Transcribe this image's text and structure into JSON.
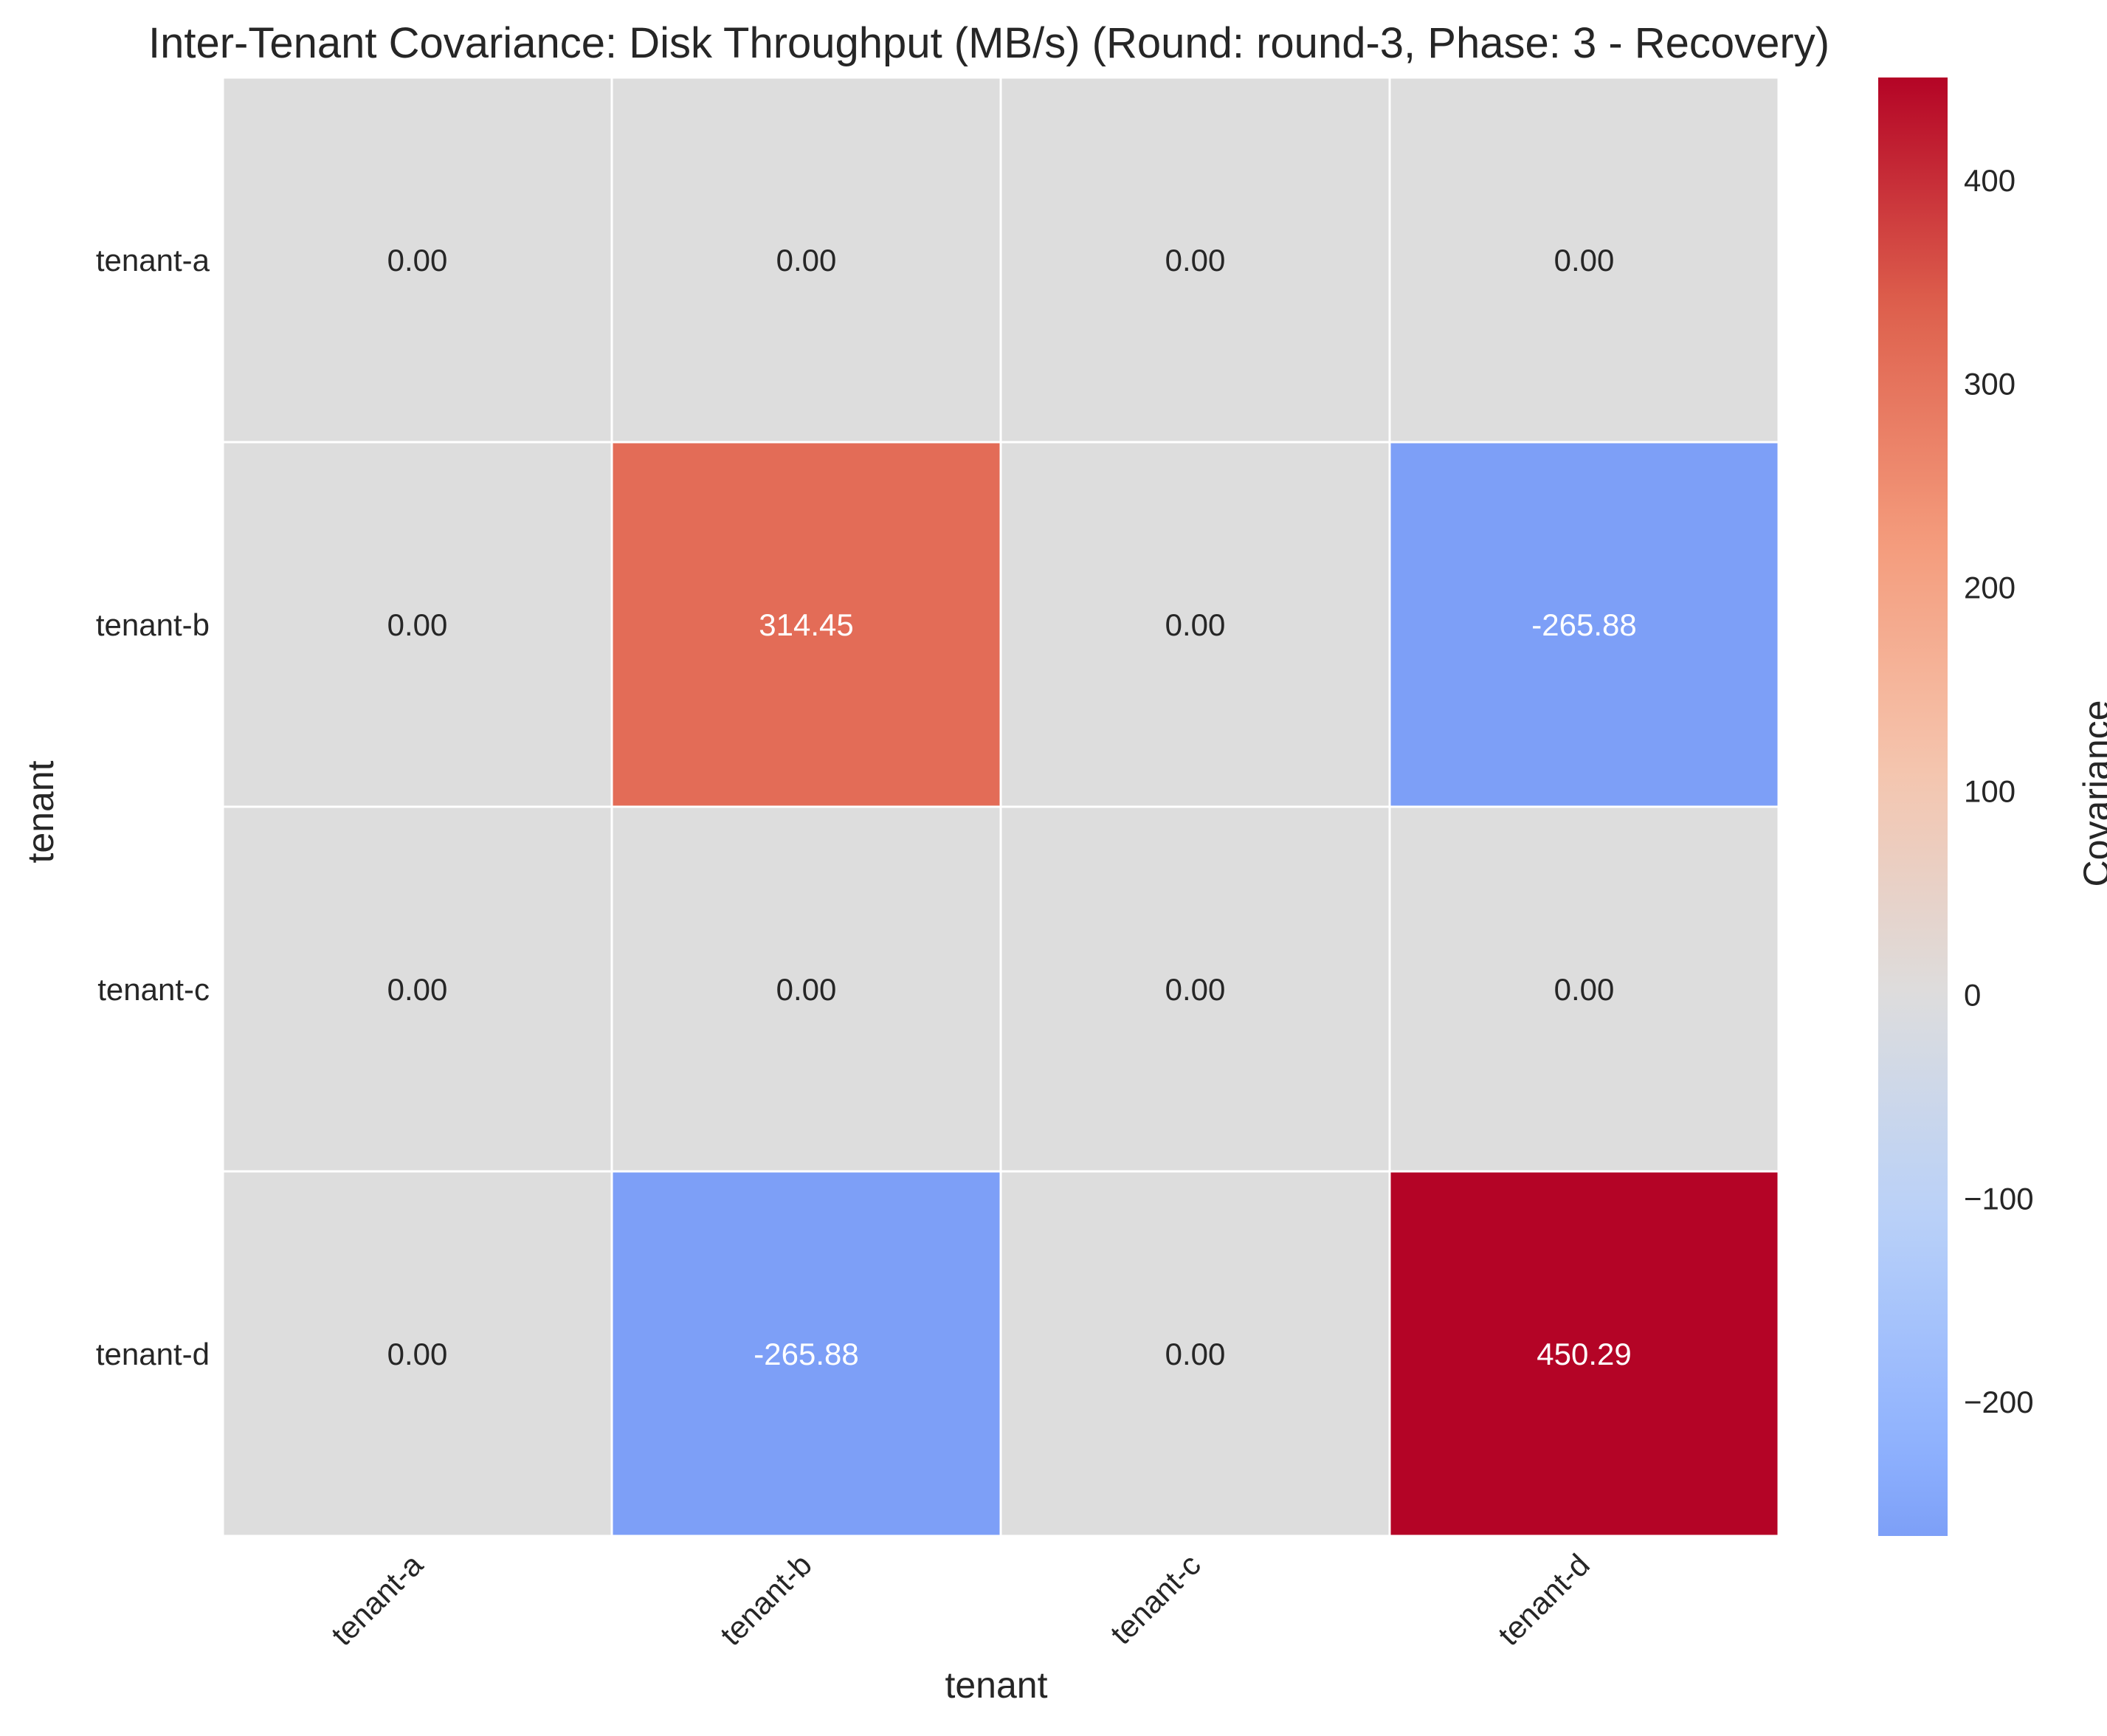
{
  "chart_data": {
    "type": "heatmap",
    "title": "Inter-Tenant Covariance: Disk Throughput (MB/s) (Round: round-3, Phase: 3 - Recovery)",
    "xlabel": "tenant",
    "ylabel": "tenant",
    "x_categories": [
      "tenant-a",
      "tenant-b",
      "tenant-c",
      "tenant-d"
    ],
    "y_categories": [
      "tenant-a",
      "tenant-b",
      "tenant-c",
      "tenant-d"
    ],
    "values": [
      [
        0.0,
        0.0,
        0.0,
        0.0
      ],
      [
        0.0,
        314.45,
        0.0,
        -265.88
      ],
      [
        0.0,
        0.0,
        0.0,
        0.0
      ],
      [
        0.0,
        -265.88,
        0.0,
        450.29
      ]
    ],
    "value_labels": [
      [
        "0.00",
        "0.00",
        "0.00",
        "0.00"
      ],
      [
        "0.00",
        "314.45",
        "0.00",
        "-265.88"
      ],
      [
        "0.00",
        "0.00",
        "0.00",
        "0.00"
      ],
      [
        "0.00",
        "-265.88",
        "0.00",
        "450.29"
      ]
    ],
    "colormap": "coolwarm",
    "color_range": [
      -265.88,
      450.29
    ],
    "colorbar": {
      "label": "Covariance",
      "ticks": [
        -200,
        -100,
        0,
        100,
        200,
        300,
        400
      ],
      "tick_labels": [
        "−200",
        "−100",
        "0",
        "100",
        "200",
        "300",
        "400"
      ]
    },
    "grid": false
  }
}
